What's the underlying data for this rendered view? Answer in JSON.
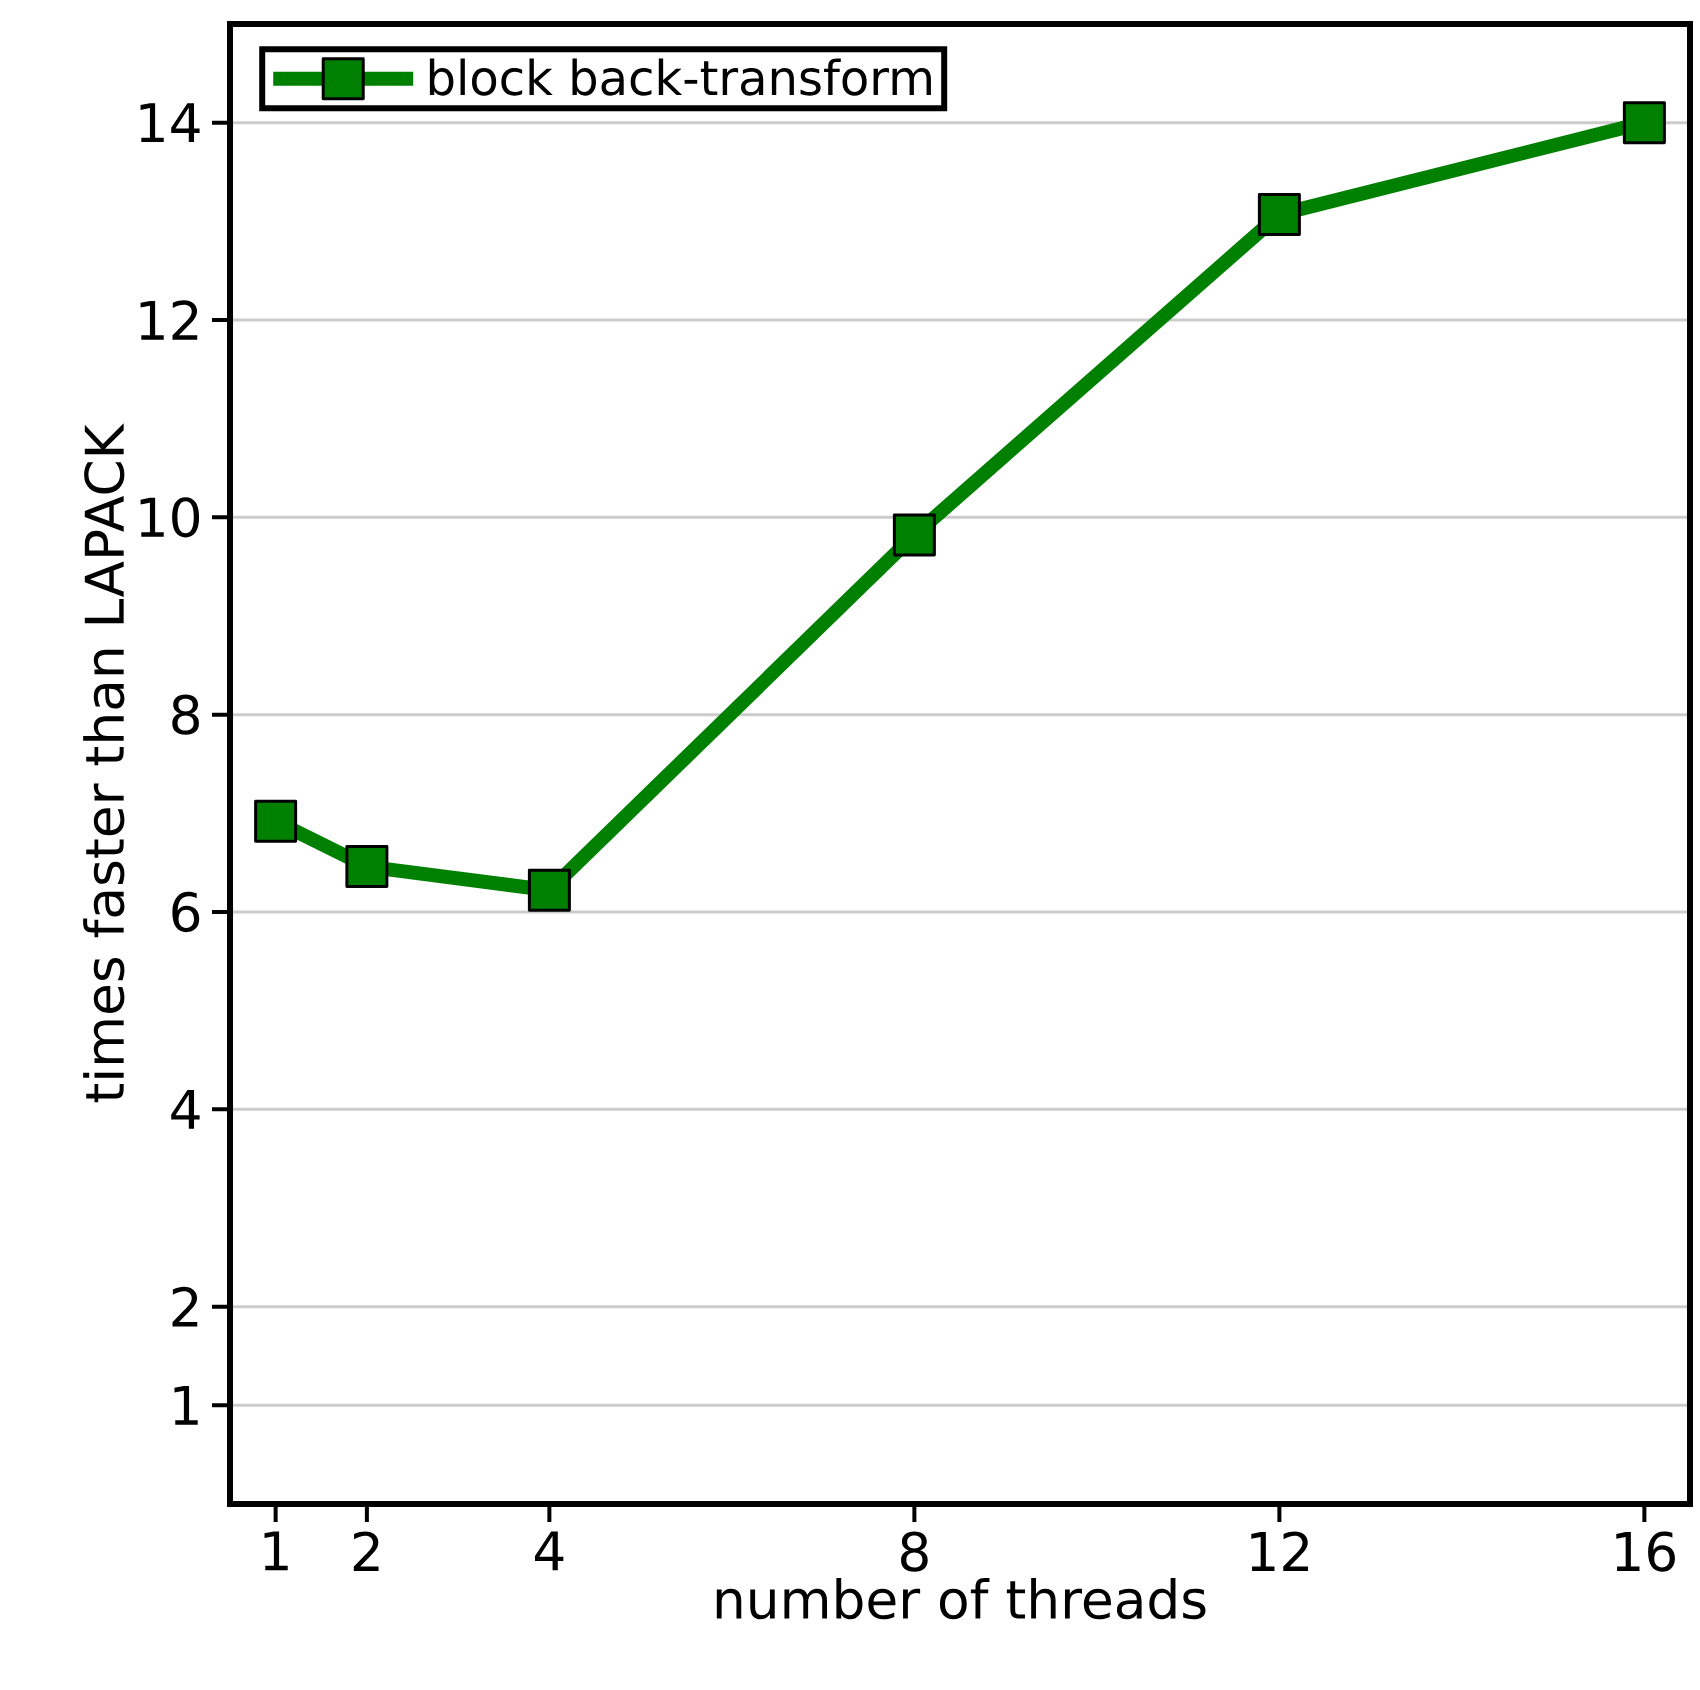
{
  "chart_data": {
    "type": "line",
    "xlabel": "number of threads",
    "ylabel": "times faster than LAPACK",
    "x": [
      1,
      2,
      4,
      8,
      12,
      16
    ],
    "series": [
      {
        "name": "block back-transform",
        "color": "#008000",
        "values": [
          6.92,
          6.46,
          6.22,
          9.82,
          13.07,
          14.0
        ]
      }
    ],
    "xlim": [
      0.5,
      16.5
    ],
    "ylim": [
      0,
      15
    ],
    "xticks": [
      1,
      2,
      4,
      8,
      12,
      16
    ],
    "yticks": [
      1,
      2,
      4,
      6,
      8,
      10,
      12,
      14
    ],
    "grid": "y",
    "legend": "top left",
    "marker": "square",
    "line_style": "solid"
  }
}
